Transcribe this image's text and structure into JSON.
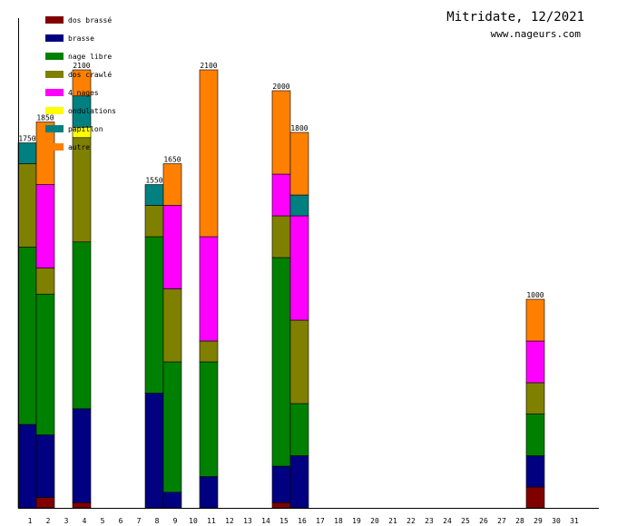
{
  "chart_data": {
    "type": "bar",
    "stacked": true,
    "title": "Mitridate, 12/2021",
    "subtitle": "www.nageurs.com",
    "xlabel": "",
    "ylabel": "",
    "ylim": [
      0,
      2100
    ],
    "categories": [
      "1",
      "2",
      "3",
      "4",
      "5",
      "6",
      "7",
      "8",
      "9",
      "10",
      "11",
      "12",
      "13",
      "14",
      "15",
      "16",
      "17",
      "18",
      "19",
      "20",
      "21",
      "22",
      "23",
      "24",
      "25",
      "26",
      "27",
      "28",
      "29",
      "30",
      "31"
    ],
    "series": [
      {
        "name": "dos brassé",
        "color": "#800000",
        "values": [
          0,
          50,
          0,
          25,
          0,
          0,
          0,
          0,
          0,
          0,
          0,
          0,
          0,
          0,
          25,
          0,
          0,
          0,
          0,
          0,
          0,
          0,
          0,
          0,
          0,
          0,
          0,
          0,
          100,
          0,
          0
        ]
      },
      {
        "name": "brasse",
        "color": "#000080",
        "values": [
          400,
          300,
          0,
          450,
          0,
          0,
          0,
          550,
          75,
          0,
          150,
          0,
          0,
          0,
          175,
          250,
          0,
          0,
          0,
          0,
          0,
          0,
          0,
          0,
          0,
          0,
          0,
          0,
          150,
          0,
          0
        ]
      },
      {
        "name": "nage libre",
        "color": "#008000",
        "values": [
          850,
          675,
          0,
          800,
          0,
          0,
          0,
          750,
          625,
          0,
          550,
          0,
          0,
          0,
          1000,
          250,
          0,
          0,
          0,
          0,
          0,
          0,
          0,
          0,
          0,
          0,
          0,
          0,
          200,
          0,
          0
        ]
      },
      {
        "name": "dos crawlé",
        "color": "#808000",
        "values": [
          400,
          125,
          0,
          500,
          0,
          0,
          0,
          150,
          350,
          0,
          100,
          0,
          0,
          0,
          200,
          400,
          0,
          0,
          0,
          0,
          0,
          0,
          0,
          0,
          0,
          0,
          0,
          0,
          150,
          0,
          0
        ]
      },
      {
        "name": "4 nages",
        "color": "#ff00ff",
        "values": [
          0,
          400,
          0,
          0,
          0,
          0,
          0,
          0,
          400,
          0,
          500,
          0,
          0,
          0,
          200,
          500,
          0,
          0,
          0,
          0,
          0,
          0,
          0,
          0,
          0,
          0,
          0,
          0,
          200,
          0,
          0
        ]
      },
      {
        "name": "ondulations",
        "color": "#ffff00",
        "values": [
          0,
          0,
          0,
          50,
          0,
          0,
          0,
          0,
          0,
          0,
          0,
          0,
          0,
          0,
          0,
          0,
          0,
          0,
          0,
          0,
          0,
          0,
          0,
          0,
          0,
          0,
          0,
          0,
          0,
          0,
          0
        ]
      },
      {
        "name": "papillon",
        "color": "#008080",
        "values": [
          100,
          0,
          0,
          150,
          0,
          0,
          0,
          100,
          0,
          0,
          0,
          0,
          0,
          0,
          0,
          100,
          0,
          0,
          0,
          0,
          0,
          0,
          0,
          0,
          0,
          0,
          0,
          0,
          0,
          0,
          0
        ]
      },
      {
        "name": "autre",
        "color": "#ff8000",
        "values": [
          0,
          300,
          0,
          125,
          0,
          0,
          0,
          0,
          200,
          0,
          800,
          0,
          0,
          0,
          400,
          300,
          0,
          0,
          0,
          0,
          0,
          0,
          0,
          0,
          0,
          0,
          0,
          0,
          200,
          0,
          0
        ]
      }
    ],
    "totals": [
      1750,
      1850,
      0,
      2100,
      0,
      0,
      0,
      1550,
      1650,
      0,
      2100,
      0,
      0,
      0,
      2000,
      1800,
      0,
      0,
      0,
      0,
      0,
      0,
      0,
      0,
      0,
      0,
      0,
      0,
      1000,
      0,
      0
    ],
    "legend_position": "top-left"
  }
}
